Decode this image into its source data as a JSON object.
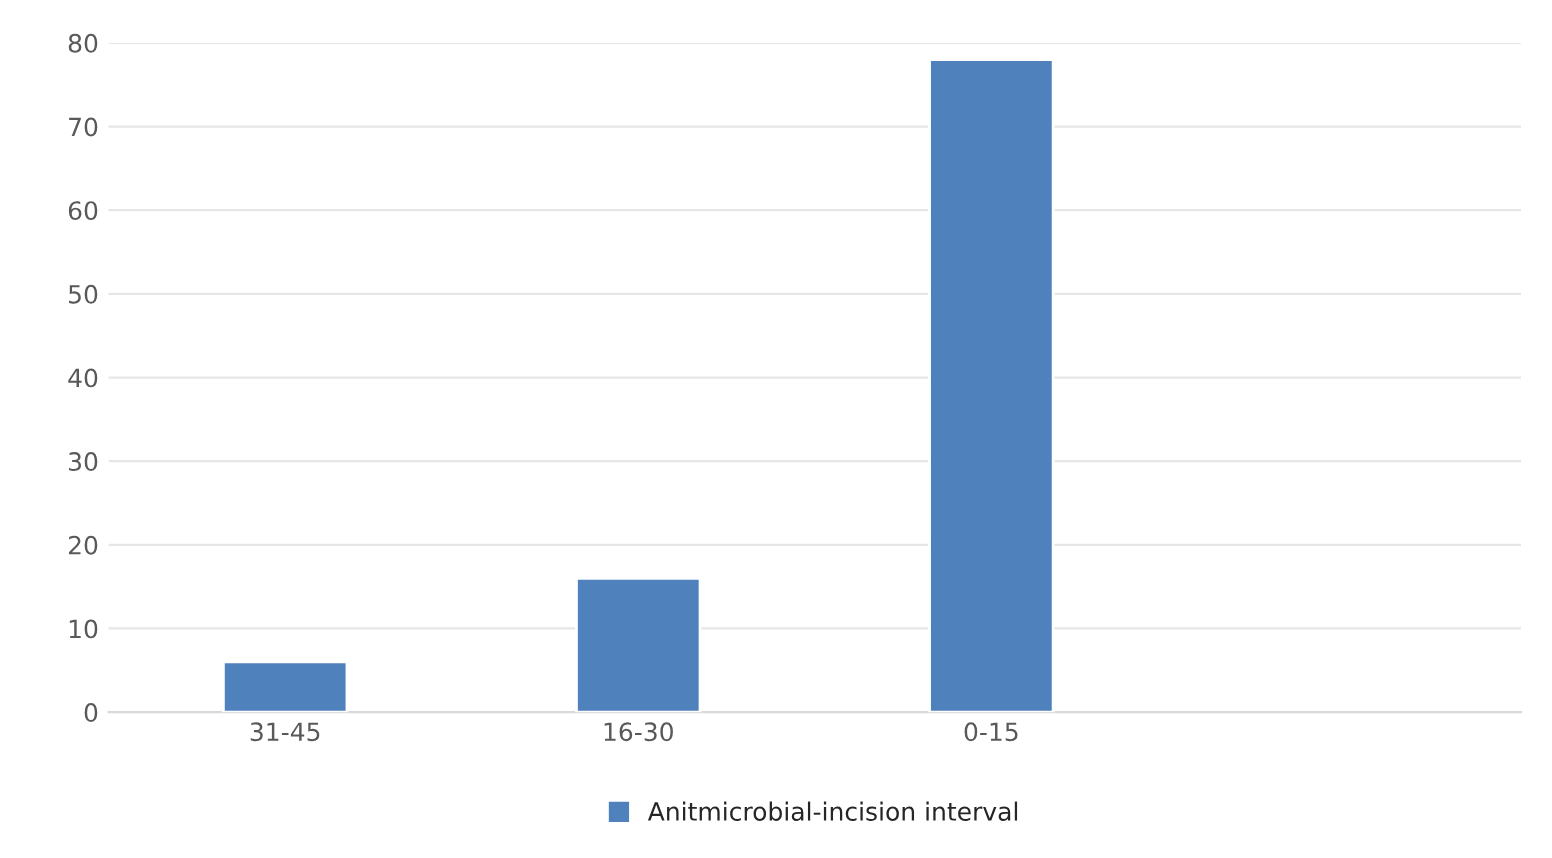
{
  "chart_data": {
    "type": "bar",
    "categories": [
      "31-45",
      "16-30",
      "0-15",
      null
    ],
    "series": [
      {
        "name": "Anitmicrobial-incision interval",
        "color": "#4f81bd",
        "values": [
          6,
          16,
          78,
          null
        ]
      }
    ],
    "ylim": [
      0,
      80
    ],
    "yticks": [
      0,
      10,
      20,
      30,
      40,
      50,
      60,
      70,
      80
    ],
    "grid": "y",
    "legend": "bottom"
  }
}
